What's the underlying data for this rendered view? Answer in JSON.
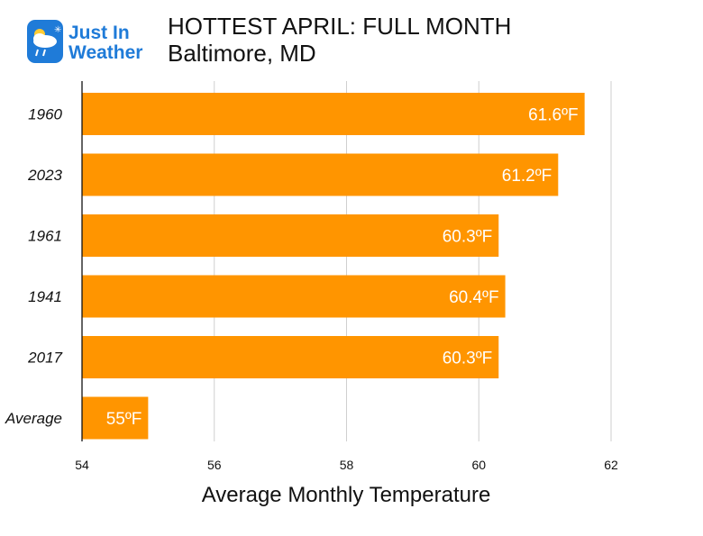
{
  "brand": {
    "logo_line1": "Just In",
    "logo_line2": "Weather",
    "accent": "#1f7bd8"
  },
  "chart_data": {
    "type": "bar",
    "orientation": "horizontal",
    "title": "HOTTEST APRIL: FULL MONTH",
    "subtitle": "Baltimore, MD",
    "xlabel": "Average Monthly Temperature",
    "ylabel": "",
    "categories": [
      "1960",
      "2023",
      "1961",
      "1941",
      "2017",
      "Average"
    ],
    "values": [
      61.6,
      61.2,
      60.3,
      60.4,
      60.3,
      55
    ],
    "data_labels": [
      "61.6ºF",
      "61.2ºF",
      "60.3ºF",
      "60.4ºF",
      "60.3ºF",
      "55ºF"
    ],
    "xlim": [
      54,
      62
    ],
    "xticks": [
      54,
      56,
      58,
      60,
      62
    ],
    "grid": true,
    "bar_color": "#ff9500"
  }
}
